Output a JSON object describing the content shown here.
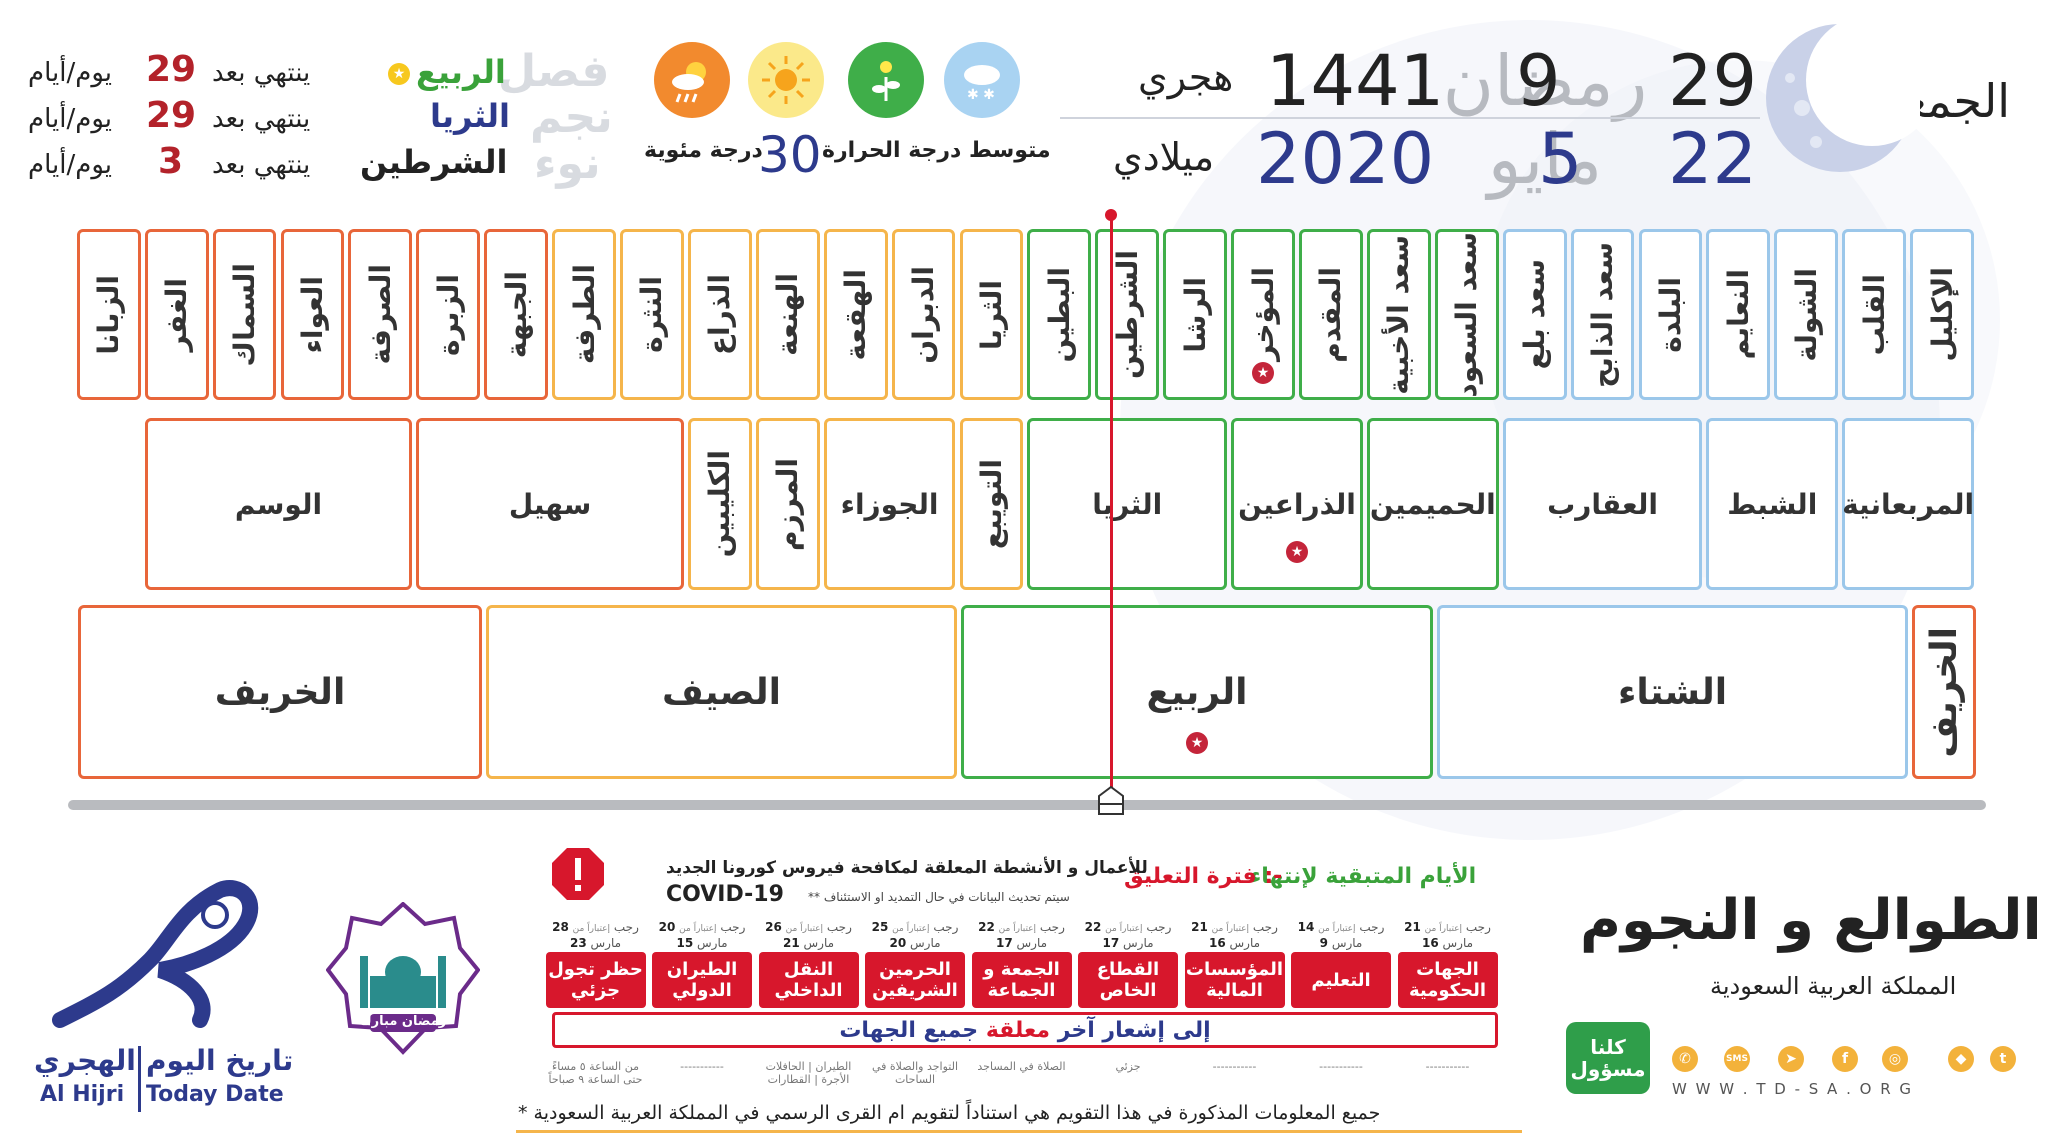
{
  "colors": {
    "autumn": "#e8663a",
    "summer": "#f5b54b",
    "spring": "#3fae49",
    "winter": "#9bc7ea",
    "red": "#b3222a",
    "navy": "#2d3a8c",
    "marker": "#d7172c"
  },
  "date": {
    "weekday": "الجمعة",
    "hijri": {
      "day": "29",
      "month_name": "رمضان",
      "month_num": "9",
      "year": "1441",
      "label": "هجري"
    },
    "gregorian": {
      "day": "22",
      "month_name": "مايو",
      "month_num": "5",
      "year": "2020",
      "label": "ميلادي"
    }
  },
  "weather": {
    "icons": [
      "snow-cloud-icon",
      "plant-sun-icon",
      "sun-icon",
      "sun-cloud-rain-icon"
    ],
    "label": "متوسط درجة الحرارة",
    "value": "30",
    "unit": "درجة مئوية"
  },
  "info": {
    "row_titles": [
      "فصل",
      "نجم",
      "نوء"
    ],
    "rows": [
      {
        "name": "الربيع",
        "ends_label": "ينتهي بعد",
        "days": "29",
        "unit": "يوم/أيام"
      },
      {
        "name": "الثريا",
        "ends_label": "ينتهي بعد",
        "days": "29",
        "unit": "يوم/أيام"
      },
      {
        "name": "الشرطين",
        "ends_label": "ينتهي بعد",
        "days": "3",
        "unit": "يوم/أيام"
      }
    ]
  },
  "mansions": [
    {
      "name": "الإكليل",
      "season": "winter"
    },
    {
      "name": "القلب",
      "season": "winter"
    },
    {
      "name": "الشولة",
      "season": "winter"
    },
    {
      "name": "النعايم",
      "season": "winter"
    },
    {
      "name": "البلدة",
      "season": "winter"
    },
    {
      "name": "سعد الذابح",
      "season": "winter"
    },
    {
      "name": "سعد بلع",
      "season": "winter"
    },
    {
      "name": "سعد السعود",
      "season": "spring"
    },
    {
      "name": "سعد الأخبية",
      "season": "spring"
    },
    {
      "name": "المقدم",
      "season": "spring"
    },
    {
      "name": "المؤخر",
      "season": "spring",
      "star": true
    },
    {
      "name": "الرشا",
      "season": "spring"
    },
    {
      "name": "الشرطين",
      "season": "spring"
    },
    {
      "name": "البطين",
      "season": "spring"
    },
    {
      "name": "الثريا",
      "season": "summer"
    },
    {
      "name": "الدبران",
      "season": "summer"
    },
    {
      "name": "الهقعة",
      "season": "summer"
    },
    {
      "name": "الهنعة",
      "season": "summer"
    },
    {
      "name": "الذراع",
      "season": "summer"
    },
    {
      "name": "النثرة",
      "season": "summer"
    },
    {
      "name": "الطرفة",
      "season": "summer"
    },
    {
      "name": "الجبهة",
      "season": "autumn"
    },
    {
      "name": "الزبرة",
      "season": "autumn"
    },
    {
      "name": "الصرفة",
      "season": "autumn"
    },
    {
      "name": "العواء",
      "season": "autumn"
    },
    {
      "name": "السماك",
      "season": "autumn"
    },
    {
      "name": "الغفر",
      "season": "autumn"
    },
    {
      "name": "الزبانا",
      "season": "autumn"
    }
  ],
  "stars": [
    {
      "name": "المربعانية",
      "season": "winter",
      "span": 2
    },
    {
      "name": "الشبط",
      "season": "winter",
      "span": 2
    },
    {
      "name": "العقارب",
      "season": "winter",
      "span": 3
    },
    {
      "name": "الحميمين",
      "season": "spring",
      "span": 2
    },
    {
      "name": "الذراعين",
      "season": "spring",
      "span": 2,
      "star": true
    },
    {
      "name": "الثريا",
      "season": "spring",
      "span": 3
    },
    {
      "name": "التويبع",
      "season": "summer",
      "span": 1,
      "vertical": true
    },
    {
      "name": "الجوزاء",
      "season": "summer",
      "span": 2
    },
    {
      "name": "المرزم",
      "season": "summer",
      "span": 1,
      "vertical": true
    },
    {
      "name": "الكليبين",
      "season": "summer",
      "span": 1,
      "vertical": true
    },
    {
      "name": "سهيل",
      "season": "autumn",
      "span": 4
    },
    {
      "name": "الوسم",
      "season": "autumn",
      "span": 4
    }
  ],
  "seasons": [
    {
      "name": "الخريف",
      "season": "autumn",
      "vertical": true
    },
    {
      "name": "الشتاء",
      "season": "winter"
    },
    {
      "name": "الربيع",
      "season": "spring",
      "star": true
    },
    {
      "name": "الصيف",
      "season": "summer"
    },
    {
      "name": "الخريف",
      "season": "autumn"
    }
  ],
  "brand": {
    "title": "الطوالع و النجوم",
    "subtitle": "المملكة العربية السعودية",
    "website": "W W W . T D - S A . O R G",
    "campaign": "كلنا مسؤول",
    "logo_ar": "الهجري",
    "logo_en": "Al Hijri",
    "today_ar": "تاريخ اليوم",
    "today_en": "Today Date",
    "ramadan_badge": "رمضان مبارك"
  },
  "suspension": {
    "title_part1": "الأيام المتبقية لإنتهاء",
    "title_part2": "فترة التعليق :-",
    "subtitle": "للأعمال و الأنشطة المعلقة لمكافحة فيروس كورونا الجديد",
    "covid": "COVID-19",
    "note": "** سيتم تحديث البيانات في حال التمديد او الاستئناف",
    "from_label": "إعتباراً من",
    "items": [
      {
        "label": "الجهات الحكومية",
        "day": "21",
        "month": "رجب",
        "gday": "16",
        "gmonth": "مارس",
        "foot": "-----------"
      },
      {
        "label": "التعليم",
        "day": "14",
        "month": "رجب",
        "gday": "9",
        "gmonth": "مارس",
        "foot": "-----------"
      },
      {
        "label": "المؤسسات المالية",
        "day": "21",
        "month": "رجب",
        "gday": "16",
        "gmonth": "مارس",
        "foot": "-----------"
      },
      {
        "label": "القطاع الخاص",
        "day": "22",
        "month": "رجب",
        "gday": "17",
        "gmonth": "مارس",
        "foot": "جزئي"
      },
      {
        "label": "الجمعة و الجماعة",
        "day": "22",
        "month": "رجب",
        "gday": "17",
        "gmonth": "مارس",
        "foot": "الصلاة في المساجد"
      },
      {
        "label": "الحرمين الشريفين",
        "day": "25",
        "month": "رجب",
        "gday": "20",
        "gmonth": "مارس",
        "foot": "التواجد والصلاة في الساحات"
      },
      {
        "label": "النقل الداخلي",
        "day": "26",
        "month": "رجب",
        "gday": "21",
        "gmonth": "مارس",
        "foot": "الطيران | الحافلات الأجرة | القطارات"
      },
      {
        "label": "الطيران الدولي",
        "day": "20",
        "month": "رجب",
        "gday": "15",
        "gmonth": "مارس",
        "foot": "-----------"
      },
      {
        "label": "حظر تجول جزئي",
        "day": "28",
        "month": "رجب",
        "gday": "23",
        "gmonth": "مارس",
        "foot": "من الساعة ٥ مساءً حتى الساعة ٩ صباحاً"
      }
    ],
    "all_part1": "جميع الجهات",
    "all_part2": "معلقة",
    "all_part3": "إلى إشعار آخر"
  },
  "footnote": "* جميع المعلومات المذكورة في هذا التقويم هي استناداً لتقويم ام القرى الرسمي في المملكة العربية السعودية"
}
